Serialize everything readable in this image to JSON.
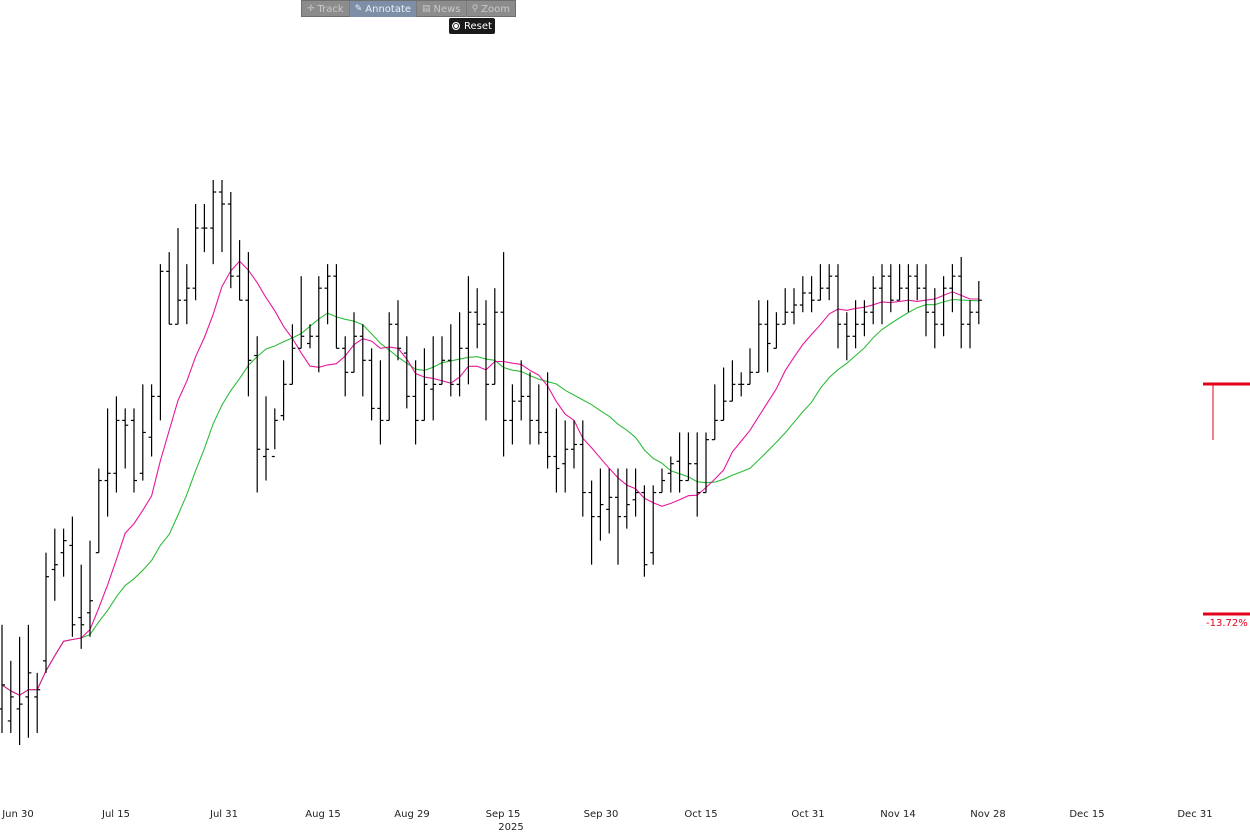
{
  "toolbar": {
    "items": [
      {
        "label": "Track",
        "icon": "✛",
        "active": false
      },
      {
        "label": "Annotate",
        "icon": "✎",
        "active": true
      },
      {
        "label": "News",
        "icon": "▤",
        "active": false
      },
      {
        "label": "Zoom",
        "icon": "⚲",
        "active": false
      }
    ],
    "reset_label": "Reset"
  },
  "colors": {
    "bars": "#000000",
    "ma_short": "#e6189b",
    "ma_long": "#2ebd3a",
    "annotation": "#e3001b"
  },
  "chart_data": {
    "type": "ohlc",
    "x_tick_labels": [
      "Jun 30",
      "Jul 15",
      "Jul 31",
      "Aug 15",
      "Aug 29",
      "Sep 15",
      "Sep 30",
      "Oct 15",
      "Oct 31",
      "Nov 14",
      "Nov 28",
      "Dec 15",
      "Dec 31"
    ],
    "year_label": "2025",
    "annotation": {
      "text": "-13.72% ("
    },
    "y_axis": "hidden",
    "bars": [
      [
        210,
        200,
        245,
        220
      ],
      [
        205,
        200,
        230,
        215
      ],
      [
        210,
        195,
        240,
        212
      ],
      [
        215,
        198,
        245,
        225
      ],
      [
        215,
        200,
        225,
        218
      ],
      [
        230,
        225,
        275,
        265
      ],
      [
        268,
        255,
        285,
        270
      ],
      [
        275,
        265,
        285,
        280
      ],
      [
        278,
        240,
        290,
        245
      ],
      [
        248,
        235,
        270,
        245
      ],
      [
        250,
        240,
        280,
        255
      ],
      [
        275,
        275,
        310,
        305
      ],
      [
        305,
        290,
        335,
        308
      ],
      [
        308,
        300,
        340,
        330
      ],
      [
        330,
        310,
        335,
        328
      ],
      [
        330,
        300,
        335,
        305
      ],
      [
        308,
        305,
        345,
        325
      ],
      [
        323,
        315,
        345,
        340
      ],
      [
        340,
        330,
        395,
        392
      ],
      [
        392,
        370,
        400,
        370
      ],
      [
        370,
        370,
        410,
        380
      ],
      [
        380,
        370,
        395,
        385
      ],
      [
        385,
        380,
        420,
        410
      ],
      [
        410,
        400,
        420,
        410
      ],
      [
        410,
        395,
        430,
        425
      ],
      [
        425,
        400,
        430,
        420
      ],
      [
        420,
        385,
        425,
        390
      ],
      [
        390,
        380,
        405,
        380
      ],
      [
        380,
        340,
        400,
        355
      ],
      [
        357,
        300,
        365,
        318
      ],
      [
        315,
        305,
        340,
        318
      ],
      [
        315,
        318,
        335,
        330
      ],
      [
        332,
        330,
        355,
        345
      ],
      [
        345,
        345,
        370,
        360
      ],
      [
        360,
        360,
        390,
        365
      ],
      [
        362,
        360,
        370,
        365
      ],
      [
        365,
        350,
        390,
        385
      ],
      [
        385,
        370,
        395,
        390
      ],
      [
        390,
        360,
        395,
        360
      ],
      [
        360,
        340,
        365,
        350
      ],
      [
        350,
        350,
        375,
        365
      ],
      [
        365,
        340,
        370,
        355
      ],
      [
        355,
        330,
        360,
        335
      ],
      [
        335,
        320,
        355,
        330
      ],
      [
        330,
        330,
        375,
        370
      ],
      [
        370,
        355,
        380,
        360
      ],
      [
        358,
        335,
        365,
        340
      ],
      [
        340,
        320,
        355,
        330
      ],
      [
        330,
        330,
        360,
        345
      ],
      [
        343,
        330,
        365,
        345
      ],
      [
        345,
        345,
        365,
        355
      ],
      [
        355,
        340,
        370,
        345
      ],
      [
        345,
        340,
        375,
        360
      ],
      [
        360,
        345,
        390,
        375
      ],
      [
        375,
        360,
        385,
        370
      ],
      [
        370,
        330,
        380,
        345
      ],
      [
        345,
        345,
        385,
        375
      ],
      [
        375,
        315,
        400,
        330
      ],
      [
        330,
        320,
        345,
        338
      ],
      [
        338,
        330,
        355,
        340
      ],
      [
        340,
        320,
        350,
        330
      ],
      [
        330,
        320,
        345,
        325
      ],
      [
        325,
        310,
        350,
        315
      ],
      [
        315,
        300,
        335,
        310
      ],
      [
        312,
        300,
        330,
        318
      ],
      [
        318,
        310,
        330,
        320
      ],
      [
        320,
        290,
        330,
        300
      ],
      [
        300,
        270,
        305,
        290
      ],
      [
        290,
        280,
        310,
        295
      ],
      [
        293,
        283,
        310,
        298
      ],
      [
        298,
        270,
        310,
        290
      ],
      [
        290,
        285,
        310,
        295
      ],
      [
        297,
        290,
        310,
        300
      ],
      [
        300,
        265,
        303,
        270
      ],
      [
        275,
        270,
        303,
        300
      ],
      [
        300,
        300,
        310,
        305
      ],
      [
        308,
        300,
        315,
        312
      ],
      [
        313,
        300,
        325,
        305
      ],
      [
        305,
        305,
        325,
        312
      ],
      [
        312,
        290,
        325,
        300
      ],
      [
        300,
        300,
        325,
        322
      ],
      [
        322,
        322,
        345,
        330
      ],
      [
        330,
        330,
        352,
        338
      ],
      [
        338,
        338,
        355,
        345
      ],
      [
        345,
        340,
        350,
        345
      ],
      [
        345,
        345,
        360,
        350
      ],
      [
        350,
        350,
        380,
        370
      ],
      [
        370,
        350,
        380,
        362
      ],
      [
        360,
        360,
        375,
        370
      ],
      [
        370,
        370,
        385,
        375
      ],
      [
        375,
        370,
        385,
        378
      ],
      [
        378,
        375,
        390,
        383
      ],
      [
        383,
        375,
        390,
        380
      ],
      [
        380,
        380,
        395,
        385
      ],
      [
        385,
        380,
        395,
        390
      ],
      [
        390,
        360,
        395,
        370
      ],
      [
        370,
        355,
        375,
        365
      ],
      [
        365,
        360,
        380,
        370
      ],
      [
        370,
        365,
        380,
        375
      ],
      [
        375,
        370,
        390,
        385
      ],
      [
        385,
        370,
        395,
        390
      ],
      [
        390,
        375,
        395,
        380
      ],
      [
        380,
        380,
        395,
        385
      ],
      [
        385,
        375,
        395,
        390
      ],
      [
        390,
        380,
        395,
        385
      ],
      [
        385,
        365,
        395,
        375
      ],
      [
        375,
        360,
        385,
        370
      ],
      [
        370,
        365,
        390,
        385
      ],
      [
        385,
        375,
        395,
        390
      ],
      [
        390,
        360,
        398,
        370
      ],
      [
        370,
        360,
        380,
        375
      ],
      [
        375,
        370,
        388,
        380
      ]
    ]
  }
}
